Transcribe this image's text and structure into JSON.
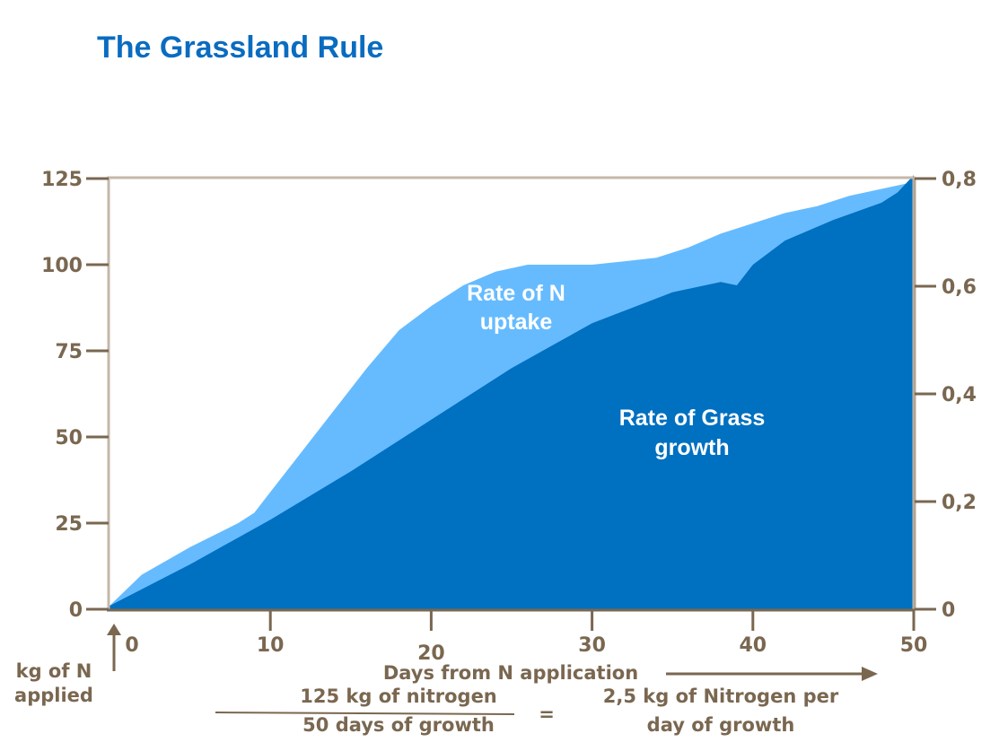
{
  "title": "The Grassland Rule",
  "colors": {
    "title": "#0a6cc0",
    "n_uptake": "#66bbff",
    "grass_growth": "#0070c0",
    "axis": "#7a6750",
    "plot_border": "#c4b8aa"
  },
  "chart_data": {
    "type": "area",
    "title": "The Grassland Rule",
    "xlabel": "Days from N application",
    "xlim": [
      0,
      50
    ],
    "xticks": [
      0,
      10,
      20,
      30,
      40,
      50
    ],
    "y_left": {
      "label": "",
      "lim": [
        0,
        125
      ],
      "ticks": [
        0,
        25,
        50,
        75,
        100,
        125
      ]
    },
    "y_right": {
      "label": "",
      "lim": [
        0,
        0.8
      ],
      "ticks": [
        "0",
        "0,2",
        "0,4",
        "0,6",
        "0,8"
      ]
    },
    "series": [
      {
        "name": "Rate of N uptake",
        "color": "#66bbff",
        "x": [
          0,
          2,
          5,
          8,
          9,
          10,
          12,
          14,
          16,
          18,
          20,
          22,
          24,
          26,
          28,
          30,
          32,
          34,
          36,
          38,
          40,
          42,
          44,
          46,
          48,
          50
        ],
        "values": [
          1,
          10,
          18,
          25,
          28,
          34,
          46,
          58,
          70,
          81,
          88,
          94,
          98,
          100,
          100,
          100,
          101,
          102,
          105,
          109,
          112,
          115,
          117,
          120,
          122,
          124
        ]
      },
      {
        "name": "Rate of Grass growth",
        "color": "#0070c0",
        "x": [
          0,
          5,
          10,
          15,
          20,
          25,
          30,
          35,
          38,
          39,
          40,
          42,
          45,
          48,
          49,
          50
        ],
        "values": [
          1,
          13,
          26,
          40,
          55,
          70,
          83,
          92,
          95,
          94,
          100,
          107,
          113,
          118,
          121,
          126
        ]
      }
    ],
    "grid": false,
    "legend": "none"
  },
  "labels": {
    "n_uptake": [
      "Rate of N",
      "uptake"
    ],
    "grass_growth": [
      "Rate of Grass",
      "growth"
    ],
    "kg_applied": [
      "kg of N",
      "applied"
    ],
    "xaxis": "Days from N application"
  },
  "formula": {
    "numerator": "125 kg of nitrogen",
    "denominator": "50 days of growth",
    "equals": "=",
    "result": [
      "2,5 kg of Nitrogen per",
      "day of growth"
    ]
  }
}
